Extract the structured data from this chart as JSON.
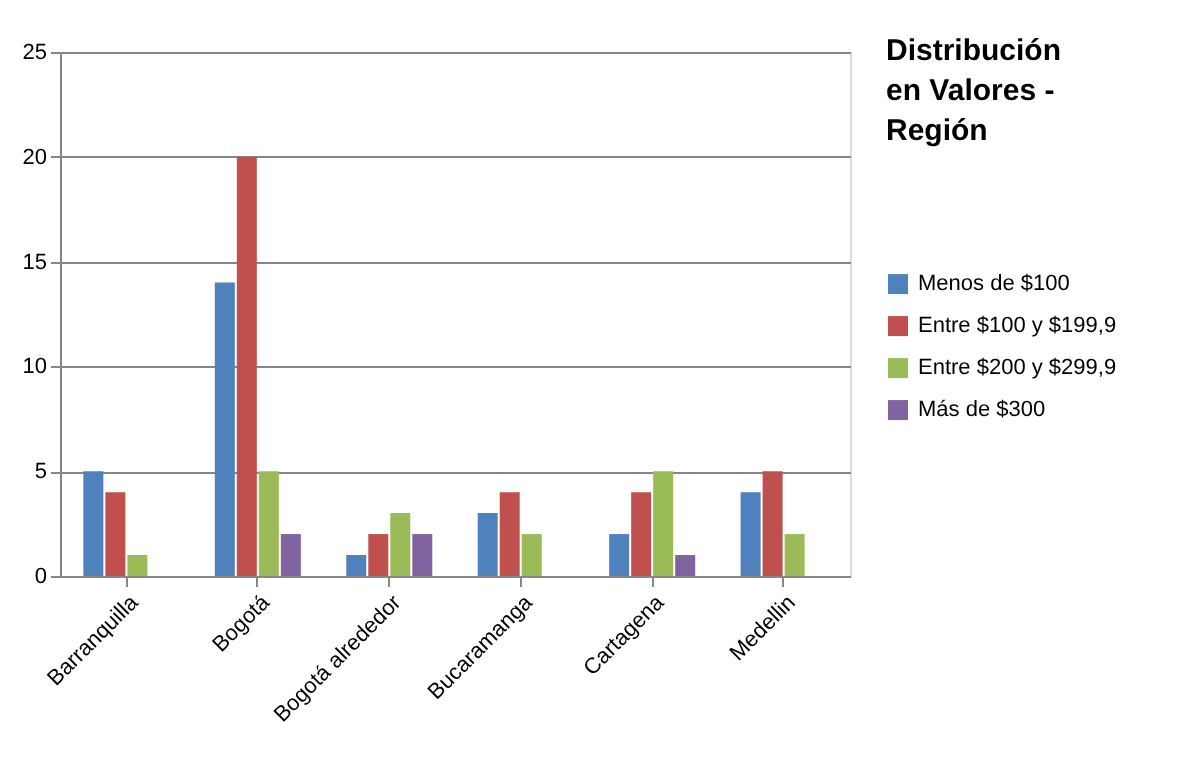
{
  "chart_data": {
    "type": "bar",
    "title": "Distribución en Valores - Región",
    "categories": [
      "Barranquilla",
      "Bogotá",
      "Bogotá alrededor",
      "Bucaramanga",
      "Cartagena",
      "Medellin"
    ],
    "series": [
      {
        "name": "Menos de $100",
        "color": "#4f81bd",
        "values": [
          5,
          14,
          1,
          3,
          2,
          4
        ]
      },
      {
        "name": "Entre $100 y $199,9",
        "color": "#c0504d",
        "values": [
          4,
          20,
          2,
          4,
          4,
          5
        ]
      },
      {
        "name": "Entre $200 y $299,9",
        "color": "#9bbb59",
        "values": [
          1,
          5,
          3,
          2,
          5,
          2
        ]
      },
      {
        "name": "Más de $300",
        "color": "#8064a2",
        "values": [
          0,
          2,
          2,
          0,
          1,
          0
        ]
      }
    ],
    "ylim": [
      0,
      25
    ],
    "yticks": [
      0,
      5,
      10,
      15,
      20,
      25
    ],
    "grid": "y",
    "legend": "right"
  }
}
